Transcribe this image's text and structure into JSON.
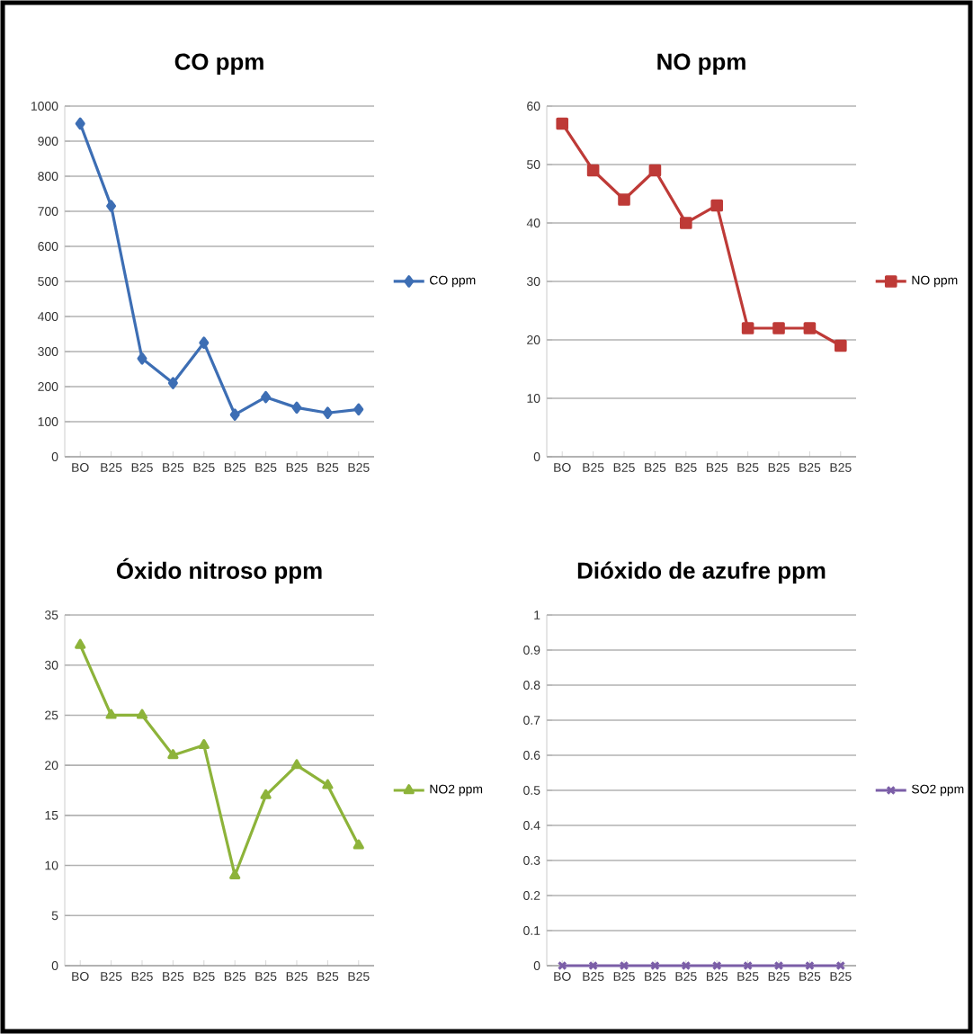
{
  "chart_data": [
    {
      "type": "line",
      "title": "CO ppm",
      "categories": [
        "BO",
        "B25",
        "B25",
        "B25",
        "B25",
        "B25",
        "B25",
        "B25",
        "B25",
        "B25"
      ],
      "series": [
        {
          "name": "CO ppm",
          "color": "#3d6eb4",
          "values": [
            950,
            715,
            280,
            210,
            325,
            120,
            170,
            140,
            125,
            135
          ]
        }
      ],
      "ylim": [
        0,
        1000
      ],
      "yticks": [
        0,
        100,
        200,
        300,
        400,
        500,
        600,
        700,
        800,
        900,
        1000
      ],
      "grid": "y",
      "legend": "right",
      "marker": "diamond"
    },
    {
      "type": "line",
      "title": "NO ppm",
      "categories": [
        "BO",
        "B25",
        "B25",
        "B25",
        "B25",
        "B25",
        "B25",
        "B25",
        "B25",
        "B25"
      ],
      "series": [
        {
          "name": "NO ppm",
          "color": "#be3a37",
          "values": [
            57,
            49,
            44,
            49,
            40,
            43,
            22,
            22,
            22,
            19
          ]
        }
      ],
      "ylim": [
        0,
        60
      ],
      "yticks": [
        0,
        10,
        20,
        30,
        40,
        50,
        60
      ],
      "grid": "y",
      "legend": "right",
      "marker": "square"
    },
    {
      "type": "line",
      "title": "Óxido nitroso ppm",
      "categories": [
        "BO",
        "B25",
        "B25",
        "B25",
        "B25",
        "B25",
        "B25",
        "B25",
        "B25",
        "B25"
      ],
      "series": [
        {
          "name": "NO2 ppm",
          "color": "#8db33a",
          "values": [
            32,
            25,
            25,
            21,
            22,
            9,
            17,
            20,
            18,
            12
          ]
        }
      ],
      "ylim": [
        0,
        35
      ],
      "yticks": [
        0,
        5,
        10,
        15,
        20,
        25,
        30,
        35
      ],
      "grid": "y",
      "legend": "right",
      "marker": "triangle"
    },
    {
      "type": "line",
      "title": "Dióxido de azufre ppm",
      "categories": [
        "BO",
        "B25",
        "B25",
        "B25",
        "B25",
        "B25",
        "B25",
        "B25",
        "B25",
        "B25"
      ],
      "series": [
        {
          "name": "SO2 ppm",
          "color": "#7b5ea7",
          "values": [
            0,
            0,
            0,
            0,
            0,
            0,
            0,
            0,
            0,
            0
          ]
        }
      ],
      "ylim": [
        0,
        1
      ],
      "yticks": [
        0,
        0.1,
        0.2,
        0.3,
        0.4,
        0.5,
        0.6,
        0.7,
        0.8,
        0.9,
        1
      ],
      "grid": "y",
      "legend": "right",
      "marker": "cross"
    }
  ]
}
